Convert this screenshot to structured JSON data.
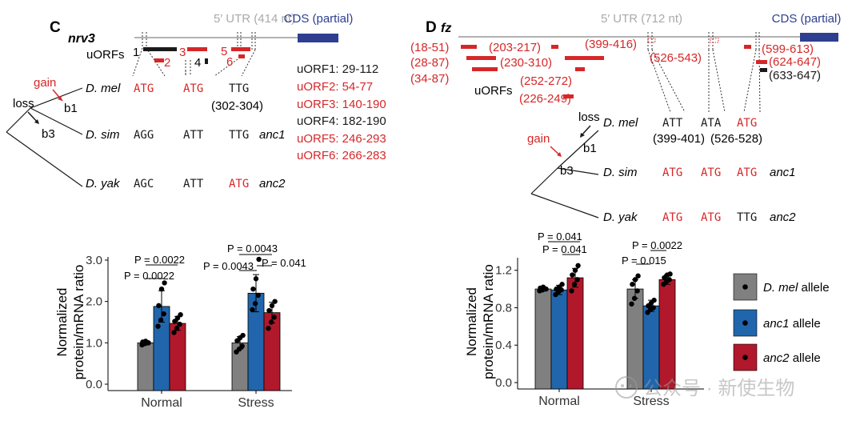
{
  "panelC": {
    "letter": "C",
    "gene": "nrv3",
    "utr_label": "5′ UTR (414 nt)",
    "cds_label": "CDS (partial)",
    "uorfs_label": "uORFs",
    "uorf_numbers": [
      "1",
      "2",
      "3",
      "4",
      "5",
      "6"
    ],
    "uorf_list": [
      {
        "text": "uORF1: 29-112",
        "color": "#1a1a1a"
      },
      {
        "text": "uORF2: 54-77",
        "color": "#d62728"
      },
      {
        "text": "uORF3: 140-190",
        "color": "#d62728"
      },
      {
        "text": "uORF4: 182-190",
        "color": "#1a1a1a"
      },
      {
        "text": "uORF5: 246-293",
        "color": "#d62728"
      },
      {
        "text": "uORF6: 266-283",
        "color": "#d62728"
      }
    ],
    "gain_label": "gain",
    "loss_label": "loss",
    "branch_labels": [
      "b1",
      "b3"
    ],
    "species": [
      {
        "name": "D. mel",
        "codons": [
          {
            "t": "ATG",
            "red": true
          },
          {
            "t": "ATG",
            "red": true
          },
          {
            "t": "TTG",
            "red": false
          }
        ],
        "anc": ""
      },
      {
        "name": "D. sim",
        "codons": [
          {
            "t": "AGG",
            "red": false
          },
          {
            "t": "ATT",
            "red": false
          },
          {
            "t": "TTG",
            "red": false
          }
        ],
        "anc": "anc1"
      },
      {
        "name": "D. yak",
        "codons": [
          {
            "t": "AGC",
            "red": false
          },
          {
            "t": "ATT",
            "red": false
          },
          {
            "t": "ATG",
            "red": true
          }
        ],
        "anc": "anc2"
      }
    ],
    "codon_pos_label": "(302-304)"
  },
  "panelD": {
    "letter": "D",
    "gene": "fz",
    "utr_label": "5′ UTR (712 nt)",
    "cds_label": "CDS (partial)",
    "uorfs_label": "uORFs",
    "uorf_labels": [
      {
        "text": "(18-51)",
        "color": "#d62728"
      },
      {
        "text": "(28-87)",
        "color": "#d62728"
      },
      {
        "text": "(34-87)",
        "color": "#d62728"
      },
      {
        "text": "(203-217)",
        "color": "#d62728"
      },
      {
        "text": "(230-310)",
        "color": "#d62728"
      },
      {
        "text": "(252-272)",
        "color": "#d62728"
      },
      {
        "text": "(226-249)",
        "color": "#d62728"
      },
      {
        "text": "(399-416)",
        "color": "#d62728"
      },
      {
        "text": "(526-543)",
        "color": "#d62728"
      },
      {
        "text": "(599-613)",
        "color": "#d62728"
      },
      {
        "text": "(624-647)",
        "color": "#d62728"
      },
      {
        "text": "(633-647)",
        "color": "#1a1a1a"
      }
    ],
    "gain_label": "gain",
    "loss_label": "loss",
    "branch_labels": [
      "b1",
      "b3"
    ],
    "species": [
      {
        "name": "D. mel",
        "codons": [
          {
            "t": "ATT",
            "red": false
          },
          {
            "t": "ATA",
            "red": false
          },
          {
            "t": "ATG",
            "red": true
          }
        ],
        "anc": ""
      },
      {
        "name": "D. sim",
        "codons": [
          {
            "t": "ATG",
            "red": true
          },
          {
            "t": "ATG",
            "red": true
          },
          {
            "t": "ATG",
            "red": true
          }
        ],
        "anc": "anc1"
      },
      {
        "name": "D. yak",
        "codons": [
          {
            "t": "ATG",
            "red": true
          },
          {
            "t": "ATG",
            "red": true
          },
          {
            "t": "TTG",
            "red": false
          }
        ],
        "anc": "anc2"
      }
    ],
    "codon_pos_labels": [
      "(399-401)",
      "(526-528)"
    ]
  },
  "chart_data": [
    {
      "type": "bar",
      "panel": "C",
      "categories": [
        "Normal",
        "Stress"
      ],
      "series": [
        {
          "name": "D. mel allele",
          "values": [
            1.0,
            1.0
          ],
          "error": [
            0.05,
            0.15
          ],
          "points": [
            [
              0.95,
              0.98,
              1.0,
              1.02,
              1.04,
              1.0
            ],
            [
              0.78,
              0.85,
              0.92,
              1.05,
              1.12,
              1.18
            ]
          ]
        },
        {
          "name": "anc1 allele",
          "values": [
            1.88,
            2.2
          ],
          "error": [
            0.38,
            0.45
          ],
          "points": [
            [
              1.4,
              1.55,
              1.7,
              1.9,
              2.3,
              2.45
            ],
            [
              1.8,
              1.95,
              2.15,
              2.3,
              2.55,
              3.02
            ]
          ]
        },
        {
          "name": "anc2 allele",
          "values": [
            1.47,
            1.73
          ],
          "error": [
            0.17,
            0.25
          ],
          "points": [
            [
              1.25,
              1.35,
              1.45,
              1.52,
              1.6,
              1.68
            ],
            [
              1.35,
              1.5,
              1.62,
              1.78,
              1.9,
              2.0
            ]
          ]
        }
      ],
      "ylabel": "Normalized\nprotein/mRNA ratio",
      "ylim": [
        0,
        3.0
      ],
      "yticks": [
        "0.0",
        "1.0",
        "2.0",
        "3.0"
      ],
      "annotations": [
        "P = 0.0022",
        "P = 0.0022",
        "P = 0.0043",
        "P = 0.0043",
        "P = 0.041"
      ]
    },
    {
      "type": "bar",
      "panel": "D",
      "categories": [
        "Normal",
        "Stress"
      ],
      "series": [
        {
          "name": "D. mel allele",
          "values": [
            1.0,
            1.0
          ],
          "error": [
            0.02,
            0.1
          ],
          "points": [
            [
              0.98,
              0.99,
              1.0,
              1.01,
              1.02,
              1.0
            ],
            [
              0.84,
              0.9,
              0.98,
              1.05,
              1.1,
              1.14
            ]
          ]
        },
        {
          "name": "anc1 allele",
          "values": [
            0.99,
            0.82
          ],
          "error": [
            0.05,
            0.06
          ],
          "points": [
            [
              0.94,
              0.97,
              0.99,
              1.0,
              1.02,
              1.05
            ],
            [
              0.75,
              0.78,
              0.8,
              0.82,
              0.85,
              0.88
            ]
          ]
        },
        {
          "name": "anc2 allele",
          "values": [
            1.12,
            1.1
          ],
          "error": [
            0.1,
            0.05
          ],
          "points": [
            [
              0.98,
              1.05,
              1.1,
              1.15,
              1.2,
              1.25
            ],
            [
              1.05,
              1.08,
              1.1,
              1.12,
              1.15,
              1.16
            ]
          ]
        }
      ],
      "ylabel": "Normalized\nprotein/mRNA ratio",
      "ylim": [
        0,
        1.3
      ],
      "yticks": [
        "0.0",
        "0.4",
        "0.8",
        "1.2"
      ],
      "annotations": [
        "P = 0.041",
        "P = 0.041",
        "P = 0.0022",
        "P = 0.015"
      ]
    }
  ],
  "legend": {
    "items": [
      {
        "label_it": "D. mel",
        "label": " allele",
        "color": "#808080"
      },
      {
        "label_it": "anc1",
        "label": " allele",
        "color": "#2166ac"
      },
      {
        "label_it": "anc2",
        "label": " allele",
        "color": "#b2182b"
      }
    ]
  },
  "watermark": "公众号 · 新使生物",
  "colors": {
    "red": "#d62728",
    "cds": "#2e3f8f",
    "gray": "#808080",
    "blue": "#2166ac",
    "darkred": "#b2182b",
    "utr": "#999999"
  }
}
